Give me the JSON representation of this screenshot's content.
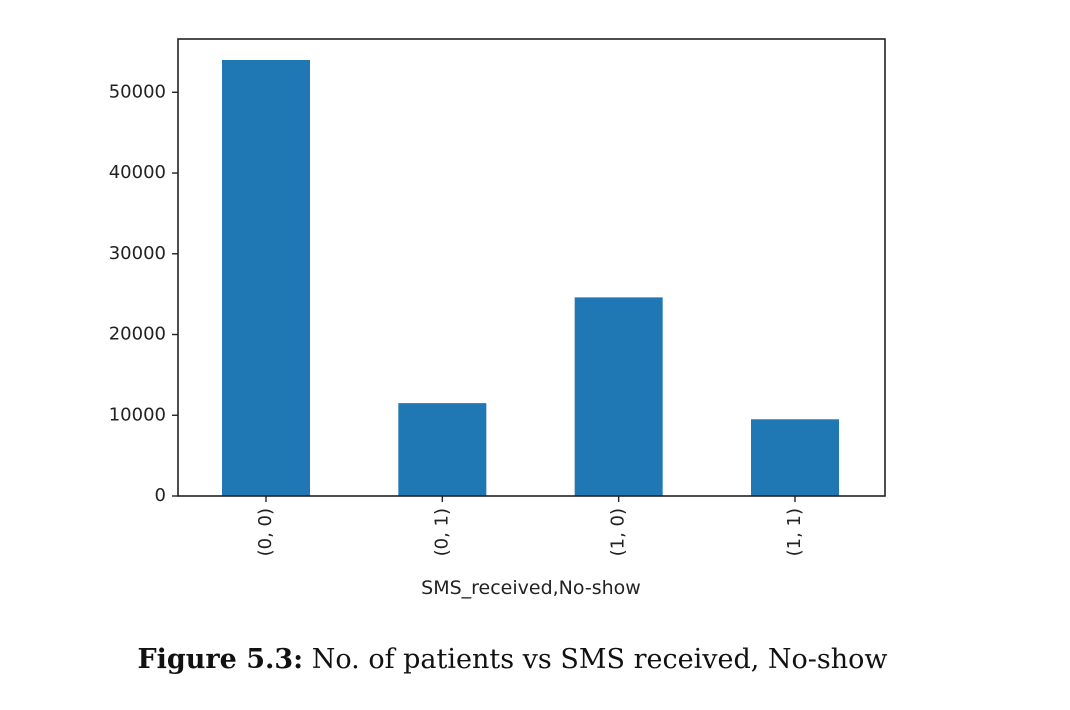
{
  "chart_data": {
    "type": "bar",
    "categories": [
      "(0, 0)",
      "(0, 1)",
      "(1, 0)",
      "(1, 1)"
    ],
    "values": [
      54000,
      11500,
      24600,
      9500
    ],
    "xlabel": "SMS_received,No-show",
    "ylabel": "",
    "ylim": [
      0,
      56600
    ],
    "yticks": [
      0,
      10000,
      20000,
      30000,
      40000,
      50000
    ],
    "bar_color": "#1f77b4",
    "grid": false,
    "legend": "none"
  },
  "caption": {
    "label": "Figure 5.3:",
    "text": "No. of patients vs SMS received, No-show"
  }
}
